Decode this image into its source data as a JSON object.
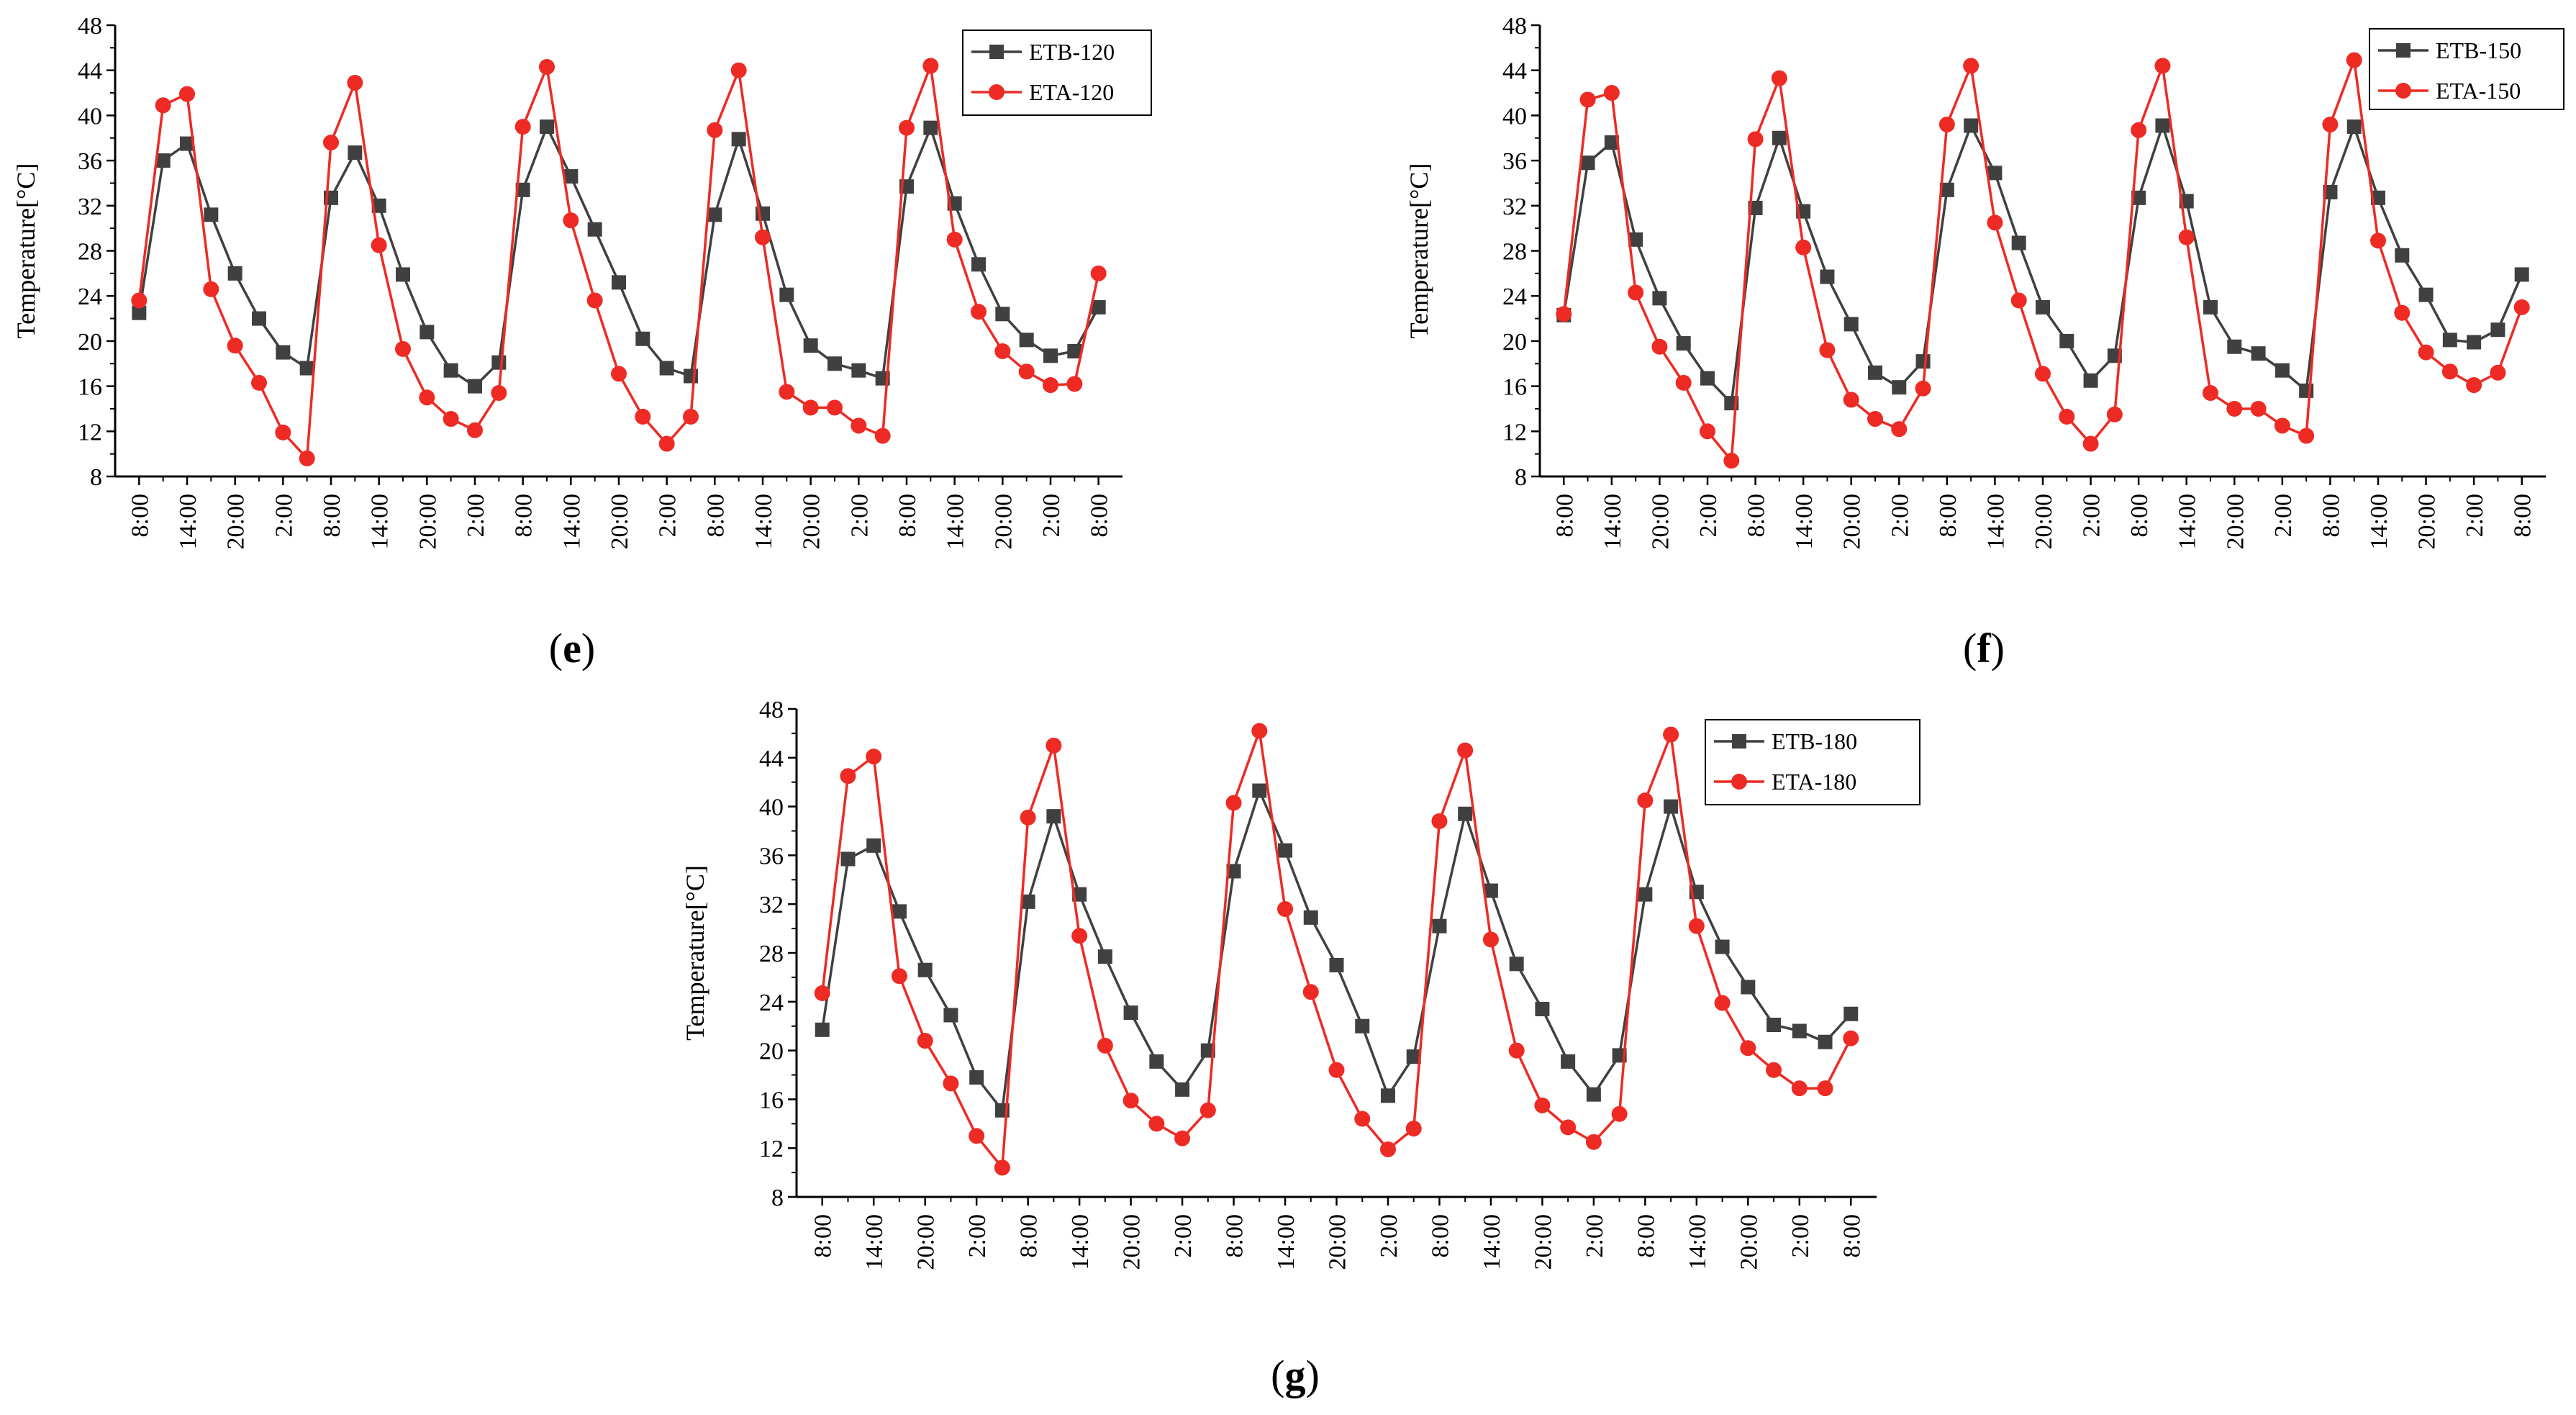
{
  "figure": {
    "panel_labels": [
      "(e)",
      "(f)",
      "(g)"
    ]
  },
  "colors": {
    "etb": "#404040",
    "eta": "#ee2a24",
    "axis": "#000000"
  },
  "chart_data": [
    {
      "type": "line",
      "panel": "e",
      "ylabel": "Temperature[°C]",
      "xlabel": "",
      "ylim": [
        8,
        48
      ],
      "yticks": [
        "8",
        "12",
        "16",
        "20",
        "24",
        "28",
        "32",
        "36",
        "40",
        "44",
        "48"
      ],
      "xticks": [
        "8:00",
        "14:00",
        "20:00",
        "2:00",
        "8:00",
        "14:00",
        "20:00",
        "2:00",
        "8:00",
        "14:00",
        "20:00",
        "2:00",
        "8:00",
        "14:00",
        "20:00",
        "2:00",
        "8:00",
        "14:00",
        "20:00",
        "2:00",
        "8:00"
      ],
      "legend_position": "top-right",
      "series": [
        {
          "name": "ETB-120",
          "marker": "square",
          "values": [
            22.5,
            36.0,
            37.5,
            31.2,
            26.0,
            22.0,
            19.0,
            17.6,
            32.7,
            36.7,
            32.0,
            25.9,
            20.8,
            17.4,
            16.0,
            18.1,
            33.4,
            39.0,
            34.6,
            29.9,
            25.2,
            20.2,
            17.6,
            16.9,
            31.2,
            37.9,
            31.3,
            24.1,
            19.6,
            18.0,
            17.4,
            16.7,
            33.7,
            38.9,
            32.2,
            26.8,
            22.4,
            20.1,
            18.7,
            19.1,
            23.0
          ]
        },
        {
          "name": "ETA-120",
          "marker": "circle",
          "values": [
            23.6,
            40.9,
            41.9,
            24.6,
            19.6,
            16.3,
            11.9,
            9.6,
            37.6,
            42.9,
            28.5,
            19.3,
            15.0,
            13.1,
            12.1,
            15.4,
            39.0,
            44.3,
            30.7,
            23.6,
            17.1,
            13.3,
            10.9,
            13.3,
            38.7,
            44.0,
            29.2,
            15.5,
            14.1,
            14.1,
            12.5,
            11.6,
            38.9,
            44.4,
            29.0,
            22.6,
            19.1,
            17.3,
            16.1,
            16.2,
            26.0
          ]
        }
      ]
    },
    {
      "type": "line",
      "panel": "f",
      "ylabel": "Temperature[°C]",
      "xlabel": "",
      "ylim": [
        8,
        48
      ],
      "yticks": [
        "8",
        "12",
        "16",
        "20",
        "24",
        "28",
        "32",
        "36",
        "40",
        "44",
        "48"
      ],
      "xticks": [
        "8:00",
        "14:00",
        "20:00",
        "2:00",
        "8:00",
        "14:00",
        "20:00",
        "2:00",
        "8:00",
        "14:00",
        "20:00",
        "2:00",
        "8:00",
        "14:00",
        "20:00",
        "2:00",
        "8:00",
        "14:00",
        "20:00",
        "2:00",
        "8:00"
      ],
      "legend_position": "top-right",
      "series": [
        {
          "name": "ETB-150",
          "marker": "square",
          "values": [
            22.3,
            35.8,
            37.6,
            29.0,
            23.8,
            19.8,
            16.7,
            14.5,
            31.8,
            38.0,
            31.5,
            25.7,
            21.5,
            17.2,
            15.9,
            18.2,
            33.4,
            39.1,
            34.9,
            28.7,
            23.0,
            20.0,
            16.5,
            18.7,
            32.7,
            39.1,
            32.4,
            23.0,
            19.5,
            18.9,
            17.4,
            15.6,
            33.2,
            39.0,
            32.7,
            27.6,
            24.1,
            20.1,
            19.9,
            21.0,
            25.9
          ]
        },
        {
          "name": "ETA-150",
          "marker": "circle",
          "values": [
            22.4,
            41.4,
            42.0,
            24.3,
            19.5,
            16.3,
            12.0,
            9.4,
            37.9,
            43.3,
            28.3,
            19.2,
            14.8,
            13.1,
            12.2,
            15.8,
            39.2,
            44.4,
            30.5,
            23.6,
            17.1,
            13.3,
            10.9,
            13.5,
            38.7,
            44.4,
            29.2,
            15.4,
            14.0,
            14.0,
            12.5,
            11.6,
            39.2,
            44.9,
            28.9,
            22.5,
            19.0,
            17.3,
            16.1,
            17.2,
            23.0
          ]
        }
      ]
    },
    {
      "type": "line",
      "panel": "g",
      "ylabel": "Temperature[°C]",
      "xlabel": "",
      "ylim": [
        8,
        48
      ],
      "yticks": [
        "8",
        "12",
        "16",
        "20",
        "24",
        "28",
        "32",
        "36",
        "40",
        "44",
        "48"
      ],
      "xticks": [
        "8:00",
        "14:00",
        "20:00",
        "2:00",
        "8:00",
        "14:00",
        "20:00",
        "2:00",
        "8:00",
        "14:00",
        "20:00",
        "2:00",
        "8:00",
        "14:00",
        "20:00",
        "2:00",
        "8:00",
        "14:00",
        "20:00",
        "2:00",
        "8:00"
      ],
      "legend_position": "top-right",
      "series": [
        {
          "name": "ETB-180",
          "marker": "square",
          "values": [
            21.7,
            35.7,
            36.8,
            31.4,
            26.6,
            22.9,
            17.8,
            15.1,
            32.2,
            39.2,
            32.8,
            27.7,
            23.1,
            19.1,
            16.8,
            20.0,
            34.7,
            41.3,
            36.4,
            30.9,
            27.0,
            22.0,
            16.3,
            19.5,
            30.2,
            39.4,
            33.1,
            27.1,
            23.4,
            19.1,
            16.4,
            19.6,
            32.8,
            40.0,
            33.0,
            28.5,
            25.2,
            22.1,
            21.6,
            20.7,
            23.0
          ]
        },
        {
          "name": "ETA-180",
          "marker": "circle",
          "values": [
            24.7,
            42.5,
            44.1,
            26.1,
            20.8,
            17.3,
            13.0,
            10.4,
            39.1,
            45.0,
            29.4,
            20.4,
            15.9,
            14.0,
            12.8,
            15.1,
            40.3,
            46.2,
            31.6,
            24.8,
            18.4,
            14.4,
            11.9,
            13.6,
            38.8,
            44.6,
            29.1,
            20.0,
            15.5,
            13.7,
            12.5,
            14.8,
            40.5,
            45.9,
            30.2,
            23.9,
            20.2,
            18.4,
            16.9,
            16.9,
            21.0
          ]
        }
      ]
    }
  ]
}
